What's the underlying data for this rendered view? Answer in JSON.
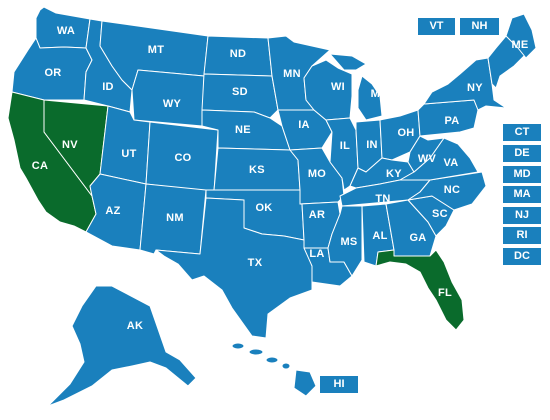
{
  "colors": {
    "default": "#1a80bd",
    "highlight": "#0a6b2c",
    "label": "#ffffff",
    "border": "#ffffff"
  },
  "map_labels": {
    "WA": "WA",
    "OR": "OR",
    "CA": "CA",
    "NV": "NV",
    "ID": "ID",
    "MT": "MT",
    "WY": "WY",
    "UT": "UT",
    "AZ": "AZ",
    "CO": "CO",
    "NM": "NM",
    "ND": "ND",
    "SD": "SD",
    "NE": "NE",
    "KS": "KS",
    "OK": "OK",
    "TX": "TX",
    "MN": "MN",
    "IA": "IA",
    "MO": "MO",
    "AR": "AR",
    "LA": "LA",
    "WI": "WI",
    "IL": "IL",
    "MI": "MI",
    "IN": "IN",
    "OH": "OH",
    "KY": "KY",
    "TN": "TN",
    "MS": "MS",
    "AL": "AL",
    "GA": "GA",
    "FL": "FL",
    "SC": "SC",
    "NC": "NC",
    "VA": "VA",
    "WV": "WV",
    "PA": "PA",
    "NY": "NY",
    "ME": "ME",
    "AK": "AK"
  },
  "highlighted_states": [
    "CA",
    "NV",
    "FL"
  ],
  "small_state_buttons": {
    "VT": "VT",
    "NH": "NH",
    "CT": "CT",
    "DE": "DE",
    "MD": "MD",
    "MA": "MA",
    "NJ": "NJ",
    "RI": "RI",
    "DC": "DC",
    "HI": "HI"
  }
}
